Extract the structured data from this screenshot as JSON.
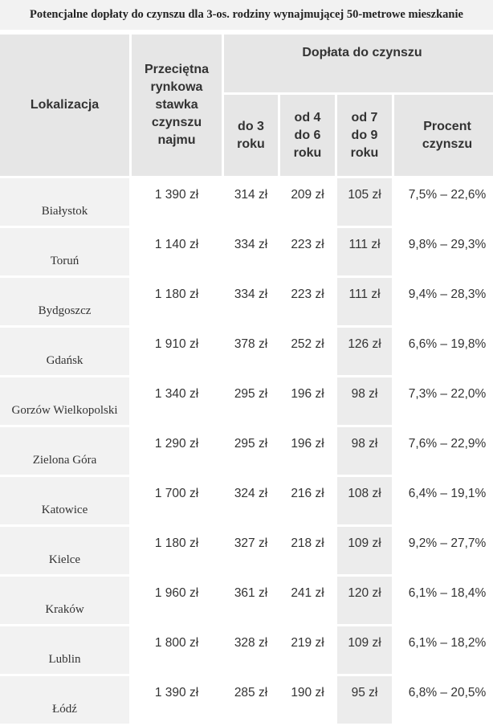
{
  "title": "Potencjalne dopłaty do czynszu dla 3-os. rodziny wynajmującej 50-metrowe mieszkanie",
  "headers": {
    "location": "Lokalizacja",
    "avg_rate_lines": [
      "Przeciętna",
      "rynkowa",
      "stawka",
      "czynszu",
      "najmu"
    ],
    "subsidy": "Dopłata do czynszu",
    "sub": [
      [
        "do 3",
        "roku"
      ],
      [
        "od 4",
        "do 6",
        "roku"
      ],
      [
        "od 7",
        "do 9",
        "roku"
      ],
      [
        "Procent",
        "czynszu"
      ]
    ]
  },
  "rows": [
    {
      "city": "Białystok",
      "rate": "1 390 zł",
      "y1_3": "314 zł",
      "y4_6": "209 zł",
      "y7_9": "105 zł",
      "pct": "7,5% – 22,6%"
    },
    {
      "city": "Toruń",
      "rate": "1 140 zł",
      "y1_3": "334 zł",
      "y4_6": "223 zł",
      "y7_9": "111 zł",
      "pct": "9,8% – 29,3%"
    },
    {
      "city": "Bydgoszcz",
      "rate": "1 180 zł",
      "y1_3": "334 zł",
      "y4_6": "223 zł",
      "y7_9": "111 zł",
      "pct": "9,4% – 28,3%"
    },
    {
      "city": "Gdańsk",
      "rate": "1 910 zł",
      "y1_3": "378 zł",
      "y4_6": "252 zł",
      "y7_9": "126 zł",
      "pct": "6,6% – 19,8%"
    },
    {
      "city": "Gorzów Wielkopolski",
      "rate": "1 340 zł",
      "y1_3": "295 zł",
      "y4_6": "196 zł",
      "y7_9": "98 zł",
      "pct": "7,3% – 22,0%"
    },
    {
      "city": "Zielona Góra",
      "rate": "1 290 zł",
      "y1_3": "295 zł",
      "y4_6": "196 zł",
      "y7_9": "98 zł",
      "pct": "7,6% – 22,9%"
    },
    {
      "city": "Katowice",
      "rate": "1 700 zł",
      "y1_3": "324 zł",
      "y4_6": "216 zł",
      "y7_9": "108 zł",
      "pct": "6,4% – 19,1%"
    },
    {
      "city": "Kielce",
      "rate": "1 180 zł",
      "y1_3": "327 zł",
      "y4_6": "218 zł",
      "y7_9": "109 zł",
      "pct": "9,2% – 27,7%"
    },
    {
      "city": "Kraków",
      "rate": "1 960 zł",
      "y1_3": "361 zł",
      "y4_6": "241 zł",
      "y7_9": "120 zł",
      "pct": "6,1% – 18,4%"
    },
    {
      "city": "Lublin",
      "rate": "1 800 zł",
      "y1_3": "328 zł",
      "y4_6": "219 zł",
      "y7_9": "109 zł",
      "pct": "6,1% – 18,2%"
    },
    {
      "city": "Łódź",
      "rate": "1 390 zł",
      "y1_3": "285 zł",
      "y4_6": "190 zł",
      "y7_9": "95 zł",
      "pct": "6,8% – 20,5%"
    }
  ]
}
